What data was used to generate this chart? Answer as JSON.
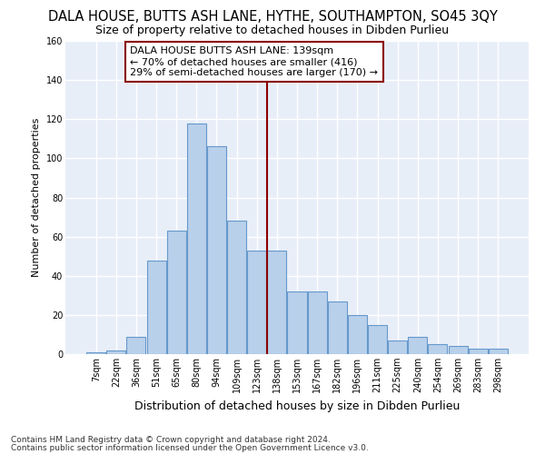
{
  "title": "DALA HOUSE, BUTTS ASH LANE, HYTHE, SOUTHAMPTON, SO45 3QY",
  "subtitle": "Size of property relative to detached houses in Dibden Purlieu",
  "xlabel": "Distribution of detached houses by size in Dibden Purlieu",
  "ylabel": "Number of detached properties",
  "footnote1": "Contains HM Land Registry data © Crown copyright and database right 2024.",
  "footnote2": "Contains public sector information licensed under the Open Government Licence v3.0.",
  "bin_labels": [
    "7sqm",
    "22sqm",
    "36sqm",
    "51sqm",
    "65sqm",
    "80sqm",
    "94sqm",
    "109sqm",
    "123sqm",
    "138sqm",
    "153sqm",
    "167sqm",
    "182sqm",
    "196sqm",
    "211sqm",
    "225sqm",
    "240sqm",
    "254sqm",
    "269sqm",
    "283sqm",
    "298sqm"
  ],
  "bar_heights": [
    1,
    2,
    9,
    48,
    63,
    118,
    106,
    68,
    53,
    53,
    32,
    32,
    27,
    20,
    15,
    7,
    9,
    5,
    4,
    3,
    3
  ],
  "bar_color": "#b8d0ea",
  "bar_edgecolor": "#6699cc",
  "vline_color": "#8b0000",
  "annotation_text": "DALA HOUSE BUTTS ASH LANE: 139sqm\n← 70% of detached houses are smaller (416)\n29% of semi-detached houses are larger (170) →",
  "annotation_box_color": "#ffffff",
  "annotation_box_edgecolor": "#8b0000",
  "ylim": [
    0,
    160
  ],
  "yticks": [
    0,
    20,
    40,
    60,
    80,
    100,
    120,
    140,
    160
  ],
  "background_color": "#e8eef8",
  "grid_color": "#ffffff",
  "title_fontsize": 10.5,
  "subtitle_fontsize": 9,
  "xlabel_fontsize": 9,
  "ylabel_fontsize": 8,
  "tick_fontsize": 7,
  "annotation_fontsize": 8,
  "footnote_fontsize": 6.5
}
